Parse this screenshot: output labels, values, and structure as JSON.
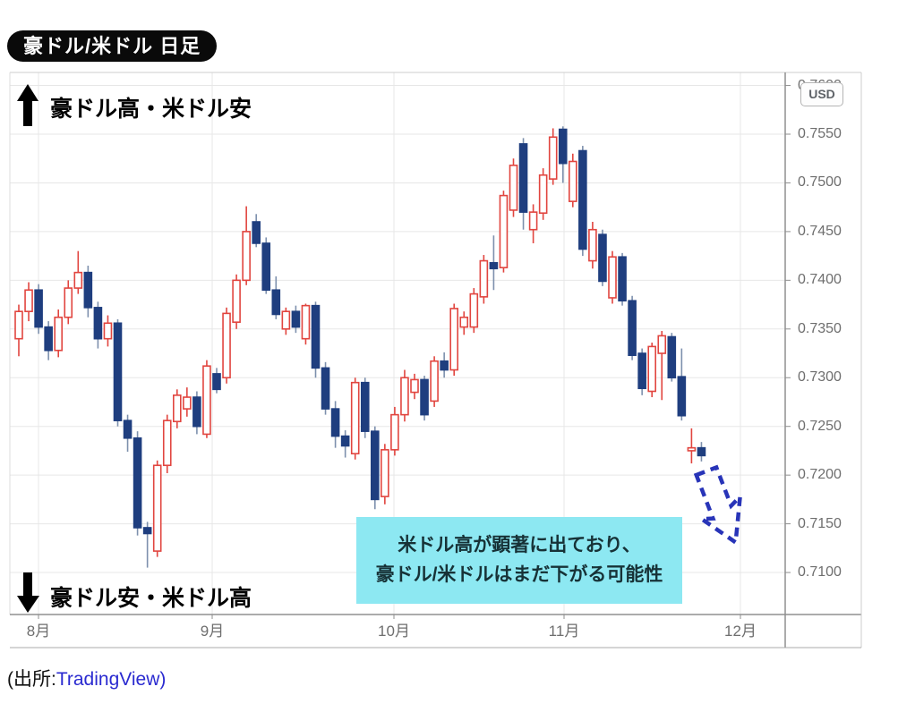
{
  "title_badge": "豪ドル/米ドル 日足",
  "annotations": {
    "top": "豪ドル高・米ドル安",
    "bottom": "豪ドル安・米ドル高",
    "callout_line1": "米ドル高が顕著に出ており、",
    "callout_line2": "豪ドル/米ドルはまだ下がる可能性"
  },
  "source": {
    "prefix": "(出所:",
    "link": "TradingView",
    "suffix": ")"
  },
  "price_axis": {
    "currency_badge": "USD",
    "labels": [
      "0.7600",
      "0.7550",
      "0.7500",
      "0.7450",
      "0.7400",
      "0.7350",
      "0.7300",
      "0.7250",
      "0.7200",
      "0.7150",
      "0.7100"
    ]
  },
  "time_axis": {
    "labels": [
      "8月",
      "9月",
      "10月",
      "11月",
      "12月"
    ]
  },
  "colors": {
    "up_candle": "#e1453f",
    "down_candle": "#1f3e7f",
    "down_wick": "#7d90ad",
    "grid": "#e7e7e7",
    "axis_line": "#8f8f8f",
    "panel_border": "#cccccc",
    "callout_bg": "#8de8f2",
    "dashed_arrow": "#2834b8",
    "annotation_arrow": "#000000",
    "link_blue": "#2a2ad0"
  },
  "chart_data": {
    "type": "candlestick",
    "title": "豪ドル/米ドル 日足",
    "pair": "AUD/USD",
    "timeframe": "daily",
    "currency": "USD",
    "ylabel": "USD",
    "ylim": [
      0.705,
      0.762
    ],
    "y_ticks": [
      0.76,
      0.755,
      0.75,
      0.745,
      0.74,
      0.735,
      0.73,
      0.725,
      0.72,
      0.715,
      0.71
    ],
    "x_ticks": [
      "8月",
      "9月",
      "10月",
      "11月",
      "12月"
    ],
    "grid": true,
    "legend": false,
    "candles_ohlc": [
      [
        0.734,
        0.7375,
        0.7322,
        0.7368
      ],
      [
        0.7368,
        0.7398,
        0.7358,
        0.739
      ],
      [
        0.739,
        0.7396,
        0.7345,
        0.7352
      ],
      [
        0.7352,
        0.7358,
        0.7318,
        0.7328
      ],
      [
        0.7328,
        0.737,
        0.7321,
        0.7362
      ],
      [
        0.7362,
        0.74,
        0.7355,
        0.7392
      ],
      [
        0.7392,
        0.743,
        0.7386,
        0.7408
      ],
      [
        0.7408,
        0.7415,
        0.7362,
        0.7372
      ],
      [
        0.7372,
        0.7378,
        0.733,
        0.734
      ],
      [
        0.734,
        0.7364,
        0.7332,
        0.7356
      ],
      [
        0.7356,
        0.736,
        0.725,
        0.7256
      ],
      [
        0.7256,
        0.7262,
        0.7224,
        0.7238
      ],
      [
        0.7238,
        0.7245,
        0.7138,
        0.7146
      ],
      [
        0.7146,
        0.7152,
        0.7105,
        0.714
      ],
      [
        0.7122,
        0.7215,
        0.7116,
        0.721
      ],
      [
        0.721,
        0.7262,
        0.7202,
        0.7256
      ],
      [
        0.7255,
        0.7288,
        0.7248,
        0.7282
      ],
      [
        0.7268,
        0.729,
        0.726,
        0.728
      ],
      [
        0.728,
        0.7286,
        0.7242,
        0.725
      ],
      [
        0.7242,
        0.7318,
        0.7238,
        0.7312
      ],
      [
        0.7304,
        0.731,
        0.7284,
        0.7288
      ],
      [
        0.73,
        0.7372,
        0.7294,
        0.7366
      ],
      [
        0.7357,
        0.7406,
        0.735,
        0.74
      ],
      [
        0.74,
        0.7476,
        0.7395,
        0.745
      ],
      [
        0.746,
        0.7468,
        0.7434,
        0.7438
      ],
      [
        0.7438,
        0.7444,
        0.7386,
        0.739
      ],
      [
        0.739,
        0.7404,
        0.736,
        0.7365
      ],
      [
        0.735,
        0.7372,
        0.7344,
        0.7368
      ],
      [
        0.7368,
        0.7374,
        0.7346,
        0.7352
      ],
      [
        0.734,
        0.7376,
        0.7334,
        0.7374
      ],
      [
        0.7374,
        0.7378,
        0.73,
        0.731
      ],
      [
        0.731,
        0.7316,
        0.7262,
        0.7268
      ],
      [
        0.7268,
        0.7276,
        0.7228,
        0.724
      ],
      [
        0.724,
        0.7246,
        0.7218,
        0.723
      ],
      [
        0.7222,
        0.73,
        0.7216,
        0.7295
      ],
      [
        0.7295,
        0.73,
        0.7238,
        0.7245
      ],
      [
        0.7245,
        0.725,
        0.7165,
        0.7175
      ],
      [
        0.7178,
        0.7232,
        0.717,
        0.7226
      ],
      [
        0.7226,
        0.727,
        0.722,
        0.7262
      ],
      [
        0.7262,
        0.7308,
        0.7255,
        0.73
      ],
      [
        0.7285,
        0.7304,
        0.7278,
        0.7298
      ],
      [
        0.7298,
        0.7302,
        0.7256,
        0.7262
      ],
      [
        0.7276,
        0.7322,
        0.727,
        0.7317
      ],
      [
        0.7317,
        0.7326,
        0.73,
        0.7308
      ],
      [
        0.7308,
        0.7376,
        0.7302,
        0.7371
      ],
      [
        0.7352,
        0.7368,
        0.7344,
        0.7362
      ],
      [
        0.7352,
        0.7392,
        0.7346,
        0.7386
      ],
      [
        0.7383,
        0.7426,
        0.7376,
        0.742
      ],
      [
        0.7418,
        0.7446,
        0.739,
        0.7412
      ],
      [
        0.7413,
        0.7492,
        0.7408,
        0.7487
      ],
      [
        0.7472,
        0.7525,
        0.7465,
        0.7518
      ],
      [
        0.754,
        0.7546,
        0.7452,
        0.747
      ],
      [
        0.7452,
        0.7478,
        0.7438,
        0.747
      ],
      [
        0.7469,
        0.7515,
        0.7462,
        0.7508
      ],
      [
        0.7504,
        0.7556,
        0.7498,
        0.7547
      ],
      [
        0.7555,
        0.7558,
        0.75,
        0.752
      ],
      [
        0.7481,
        0.753,
        0.7475,
        0.7522
      ],
      [
        0.7533,
        0.7538,
        0.7425,
        0.7432
      ],
      [
        0.742,
        0.746,
        0.7412,
        0.7452
      ],
      [
        0.7447,
        0.7452,
        0.7394,
        0.7399
      ],
      [
        0.7382,
        0.743,
        0.7376,
        0.7424
      ],
      [
        0.7424,
        0.7428,
        0.7374,
        0.7379
      ],
      [
        0.7379,
        0.7384,
        0.7318,
        0.7323
      ],
      [
        0.7325,
        0.733,
        0.7282,
        0.7289
      ],
      [
        0.7286,
        0.7336,
        0.728,
        0.7332
      ],
      [
        0.7325,
        0.7348,
        0.7277,
        0.7343
      ],
      [
        0.7342,
        0.7346,
        0.7296,
        0.73
      ],
      [
        0.7301,
        0.733,
        0.7256,
        0.7261
      ],
      [
        0.7225,
        0.7248,
        0.7212,
        0.7228
      ],
      [
        0.7228,
        0.7234,
        0.7214,
        0.722
      ]
    ]
  }
}
